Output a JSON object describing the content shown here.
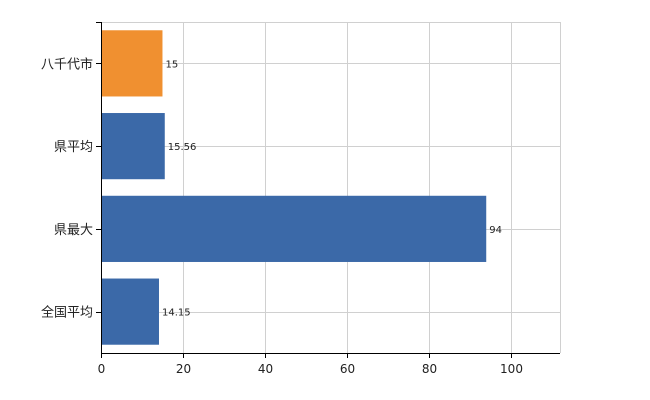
{
  "chart_data": {
    "type": "bar",
    "orientation": "horizontal",
    "title": "",
    "xlabel": "",
    "ylabel": "",
    "categories": [
      "八千代市",
      "県平均",
      "県最大",
      "全国平均"
    ],
    "values": [
      15,
      15.56,
      94,
      14.15
    ],
    "data_labels": [
      "15",
      "15.56",
      "94",
      "14.15"
    ],
    "xlim": [
      0,
      112
    ],
    "xticks": [
      0,
      20,
      40,
      60,
      80,
      100
    ],
    "grid": true,
    "legend": "none",
    "highlight_category": "八千代市",
    "colors": {
      "highlight": "#f09030",
      "default": "#3b69a8",
      "grid": "#d0d0d0",
      "axis": "#000000"
    }
  }
}
